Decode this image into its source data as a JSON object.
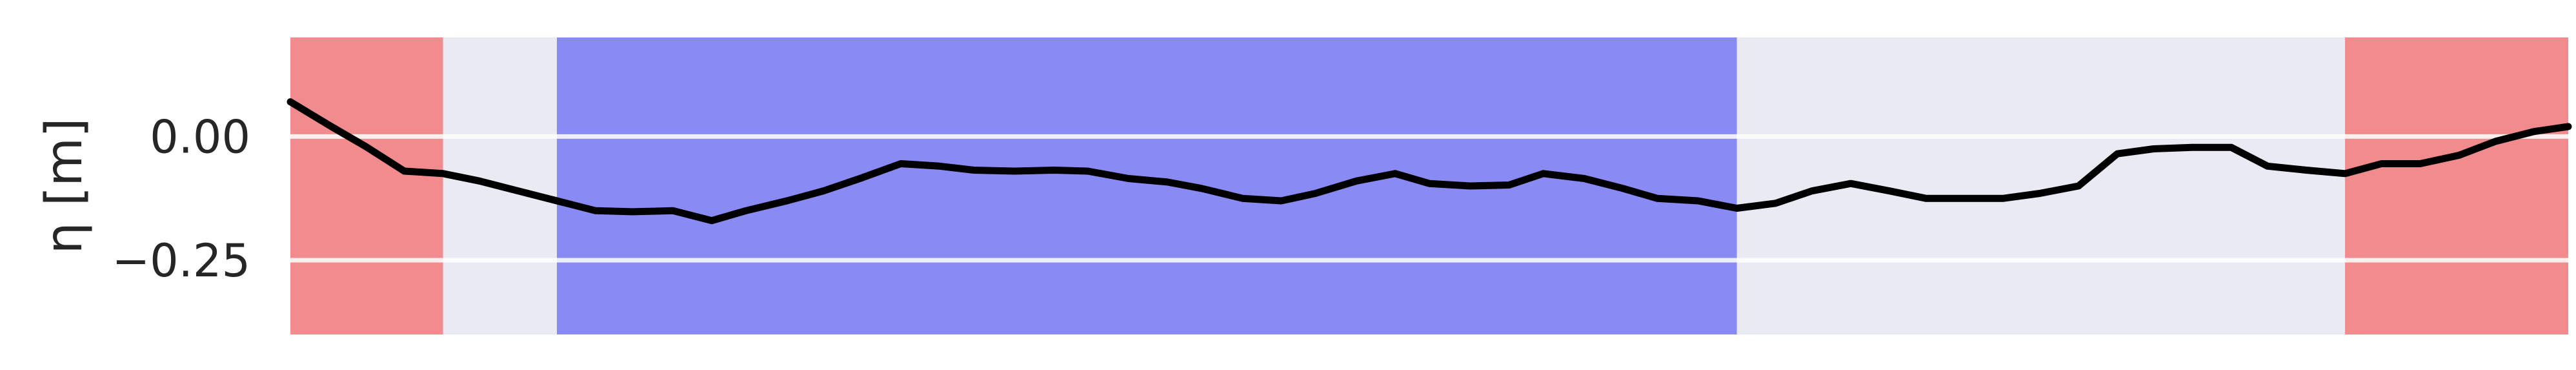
{
  "chart_data": {
    "type": "line",
    "title": "",
    "xlabel": "",
    "ylabel": "η [m]",
    "xlim": [
      0,
      1
    ],
    "ylim": [
      -0.4,
      0.2
    ],
    "yticks": [
      {
        "value": 0.0,
        "label": "0.00"
      },
      {
        "value": -0.25,
        "label": "−0.25"
      }
    ],
    "grid": true,
    "background_color": "#eaeaf2",
    "line_color": "#000000",
    "regions": [
      {
        "x0": 0.0,
        "x1": 0.067,
        "color": "#f28b8e"
      },
      {
        "x0": 0.117,
        "x1": 0.635,
        "color": "#8a8af5"
      },
      {
        "x0": 0.902,
        "x1": 1.0,
        "color": "#f28b8e"
      }
    ],
    "series": [
      {
        "x": [
          0.0,
          0.018,
          0.033,
          0.05,
          0.067,
          0.083,
          0.1,
          0.117,
          0.134,
          0.15,
          0.168,
          0.185,
          0.2,
          0.218,
          0.234,
          0.25,
          0.268,
          0.285,
          0.3,
          0.318,
          0.335,
          0.35,
          0.368,
          0.385,
          0.4,
          0.418,
          0.435,
          0.45,
          0.468,
          0.485,
          0.5,
          0.518,
          0.535,
          0.55,
          0.568,
          0.585,
          0.6,
          0.618,
          0.635,
          0.652,
          0.668,
          0.685,
          0.702,
          0.718,
          0.735,
          0.752,
          0.768,
          0.785,
          0.802,
          0.818,
          0.835,
          0.852,
          0.868,
          0.885,
          0.902,
          0.918,
          0.935,
          0.952,
          0.968,
          0.985,
          1.0
        ],
        "y": [
          0.07,
          0.02,
          -0.02,
          -0.07,
          -0.075,
          -0.09,
          -0.11,
          -0.13,
          -0.15,
          -0.152,
          -0.15,
          -0.17,
          -0.15,
          -0.13,
          -0.11,
          -0.085,
          -0.055,
          -0.06,
          -0.068,
          -0.07,
          -0.068,
          -0.07,
          -0.085,
          -0.092,
          -0.105,
          -0.125,
          -0.13,
          -0.115,
          -0.09,
          -0.075,
          -0.095,
          -0.1,
          -0.098,
          -0.075,
          -0.085,
          -0.105,
          -0.125,
          -0.13,
          -0.145,
          -0.135,
          -0.11,
          -0.095,
          -0.11,
          -0.125,
          -0.125,
          -0.125,
          -0.115,
          -0.1,
          -0.035,
          -0.025,
          -0.022,
          -0.022,
          -0.06,
          -0.068,
          -0.075,
          -0.055,
          -0.055,
          -0.038,
          -0.01,
          0.01,
          0.02
        ]
      }
    ]
  }
}
